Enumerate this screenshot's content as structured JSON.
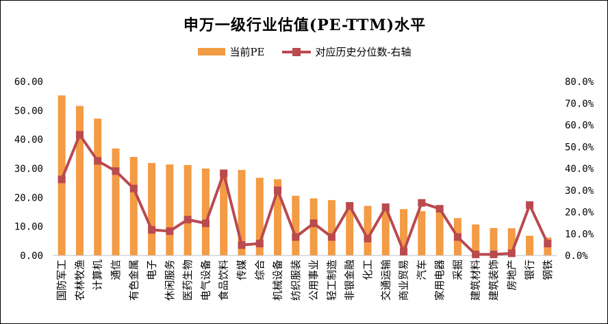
{
  "chart_data": {
    "type": "bar+line",
    "title": "申万一级行业估值(PE-TTM)水平",
    "categories": [
      "国防军工",
      "农林牧渔",
      "计算机",
      "通信",
      "有色金属",
      "电子",
      "休闲服务",
      "医药生物",
      "电气设备",
      "食品饮料",
      "传媒",
      "综合",
      "机械设备",
      "纺织服装",
      "公用事业",
      "轻工制造",
      "非银金融",
      "化工",
      "交通运输",
      "商业贸易",
      "汽车",
      "家用电器",
      "采掘",
      "建筑材料",
      "建筑装饰",
      "房地产",
      "银行",
      "钢铁"
    ],
    "series": [
      {
        "name": "当前PE",
        "type": "bar",
        "axis": "left",
        "color": "#f39b45",
        "values": [
          55.2,
          51.6,
          47.2,
          36.9,
          34.0,
          31.9,
          31.4,
          31.2,
          30.0,
          29.6,
          29.5,
          26.8,
          26.3,
          20.6,
          19.7,
          19.1,
          18.4,
          17.1,
          17.1,
          16.0,
          15.3,
          16.8,
          12.9,
          10.7,
          9.5,
          9.4,
          6.8,
          6.2
        ]
      },
      {
        "name": "对应历史分位数-右轴",
        "type": "line",
        "axis": "right",
        "color": "#b94a4e",
        "values": [
          35.0,
          55.5,
          43.5,
          38.8,
          30.8,
          11.8,
          11.2,
          16.5,
          14.8,
          37.8,
          4.8,
          5.5,
          30.0,
          8.5,
          14.8,
          8.5,
          22.8,
          7.8,
          22.2,
          1.8,
          24.2,
          21.5,
          8.5,
          0.5,
          0.5,
          1.0,
          23.2,
          5.5
        ]
      }
    ],
    "y_left": {
      "min": 0,
      "max": 60,
      "step": 10,
      "tick_labels": [
        "0.00",
        "10.00",
        "20.00",
        "30.00",
        "40.00",
        "50.00",
        "60.00"
      ]
    },
    "y_right": {
      "min": 0,
      "max": 80,
      "step": 10,
      "tick_labels": [
        "0.0%",
        "10.0%",
        "20.0%",
        "30.0%",
        "40.0%",
        "50.0%",
        "60.0%",
        "70.0%",
        "80.0%"
      ]
    },
    "legend_position": "top-center",
    "grid": false
  }
}
